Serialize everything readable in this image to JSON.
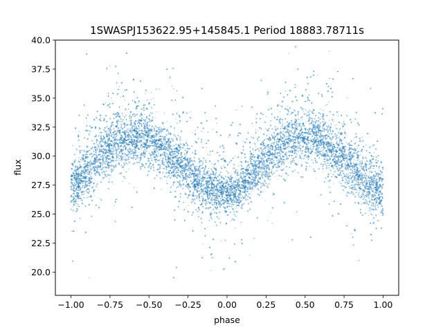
{
  "chart_data": {
    "type": "scatter",
    "title": "1SWASPJ153622.95+145845.1 Period 18883.78711s",
    "xlabel": "phase",
    "ylabel": "flux",
    "xlim": [
      -1.1,
      1.1
    ],
    "ylim": [
      18.0,
      40.0
    ],
    "x_ticks": [
      -1.0,
      -0.75,
      -0.5,
      -0.25,
      0.0,
      0.25,
      0.5,
      0.75,
      1.0
    ],
    "x_tick_labels": [
      "−1.00",
      "−0.75",
      "−0.50",
      "−0.25",
      "0.00",
      "0.25",
      "0.50",
      "0.75",
      "1.00"
    ],
    "y_ticks": [
      20.0,
      22.5,
      25.0,
      27.5,
      30.0,
      32.5,
      35.0,
      37.5,
      40.0
    ],
    "y_tick_labels": [
      "20.0",
      "22.5",
      "25.0",
      "27.5",
      "30.0",
      "32.5",
      "35.0",
      "37.5",
      "40.0"
    ],
    "grid": false,
    "point_color": "#1f77b4",
    "series": [
      {
        "x": [
          -1.0,
          -0.9,
          -0.8,
          -0.7,
          -0.6,
          -0.5,
          -0.4,
          -0.3,
          -0.2,
          -0.1,
          0.0,
          0.1,
          0.2,
          0.3,
          0.4,
          0.5,
          0.6,
          0.7,
          0.8,
          0.9,
          1.0
        ],
        "y": [
          27.0,
          28.5,
          30.0,
          31.0,
          31.5,
          31.3,
          30.4,
          29.0,
          27.8,
          27.0,
          26.5,
          27.3,
          28.8,
          30.3,
          31.2,
          31.4,
          31.0,
          30.0,
          28.8,
          27.5,
          26.8
        ],
        "spread": [
          2.8,
          2.8,
          2.8,
          2.8,
          2.8,
          2.8,
          2.8,
          2.8,
          2.8,
          2.5,
          2.2,
          2.5,
          2.8,
          2.8,
          2.8,
          2.8,
          2.8,
          2.8,
          2.8,
          2.8,
          2.8
        ]
      }
    ]
  }
}
